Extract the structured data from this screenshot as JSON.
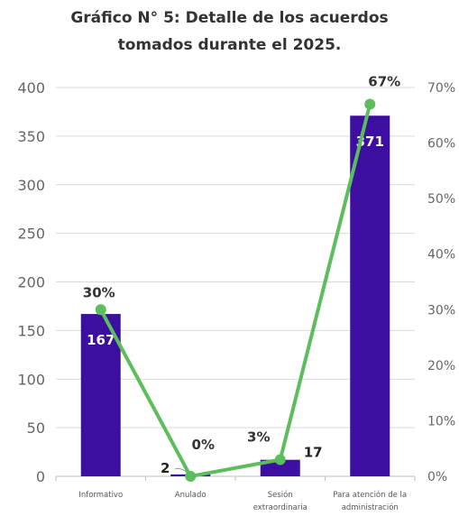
{
  "title_line1": "Gráfico N° 5: Detalle de los acuerdos",
  "title_line2": "tomados durante el 2025.",
  "chart_data": {
    "type": "bar",
    "title": "Gráfico N° 5: Detalle de los acuerdos tomados durante el 2025.",
    "categories": [
      "Informativo",
      "Anulado",
      "Sesión extraordinaria",
      "Para atención de la administración"
    ],
    "category_label_lines": [
      [
        "Informativo"
      ],
      [
        "Anulado"
      ],
      [
        "Sesión",
        "extraordinaria"
      ],
      [
        "Para atención de la",
        "administración"
      ]
    ],
    "series": [
      {
        "type": "bar",
        "axis": "left",
        "values": [
          167,
          2,
          17,
          371
        ],
        "data_labels": [
          "167",
          "2",
          "17",
          "371"
        ],
        "color": "#3d0fa0"
      },
      {
        "type": "line",
        "axis": "right",
        "values": [
          30,
          0,
          3,
          67
        ],
        "data_labels": [
          "30%",
          "0%",
          "3%",
          "67%"
        ],
        "color": "#5cbd5c"
      }
    ],
    "y_left": {
      "min": 0,
      "max": 400,
      "ticks": [
        "0",
        "50",
        "100",
        "150",
        "200",
        "250",
        "300",
        "350",
        "400"
      ]
    },
    "y_right": {
      "min": 0,
      "max": 70,
      "ticks": [
        "0%",
        "10%",
        "20%",
        "30%",
        "40%",
        "50%",
        "60%",
        "70%"
      ]
    },
    "grid": true,
    "legend": "none"
  }
}
